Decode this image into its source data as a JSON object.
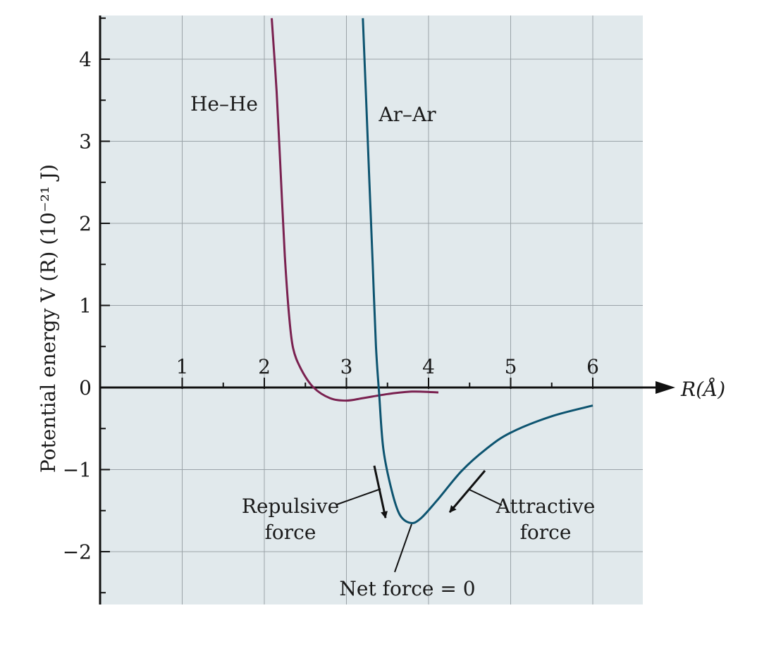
{
  "chart_data": {
    "type": "line",
    "xlabel": "R(Å)",
    "ylabel": "Potential energy V (R) (10⁻²¹ J)",
    "xlim": [
      0,
      6.6
    ],
    "ylim": [
      -2.6,
      4.5
    ],
    "x_ticks": [
      "1",
      "2",
      "3",
      "4",
      "5",
      "6"
    ],
    "y_ticks": [
      "4",
      "3",
      "2",
      "1",
      "0",
      "−1",
      "−2"
    ],
    "grid": true,
    "background": "#e1e9ec",
    "series": [
      {
        "name": "He–He",
        "color": "#7a2150",
        "points": [
          [
            2.09,
            4.5
          ],
          [
            2.15,
            3.6
          ],
          [
            2.2,
            2.6
          ],
          [
            2.25,
            1.6
          ],
          [
            2.3,
            0.9
          ],
          [
            2.35,
            0.48
          ],
          [
            2.45,
            0.22
          ],
          [
            2.6,
            0.0
          ],
          [
            2.8,
            -0.13
          ],
          [
            3.0,
            -0.16
          ],
          [
            3.2,
            -0.13
          ],
          [
            3.5,
            -0.08
          ],
          [
            3.8,
            -0.05
          ],
          [
            4.12,
            -0.06
          ]
        ]
      },
      {
        "name": "Ar–Ar",
        "color": "#0d5470",
        "points": [
          [
            3.2,
            4.5
          ],
          [
            3.24,
            3.5
          ],
          [
            3.28,
            2.5
          ],
          [
            3.32,
            1.5
          ],
          [
            3.36,
            0.5
          ],
          [
            3.4,
            -0.1
          ],
          [
            3.45,
            -0.75
          ],
          [
            3.55,
            -1.25
          ],
          [
            3.65,
            -1.55
          ],
          [
            3.78,
            -1.65
          ],
          [
            3.9,
            -1.6
          ],
          [
            4.1,
            -1.38
          ],
          [
            4.4,
            -1.02
          ],
          [
            4.7,
            -0.75
          ],
          [
            5.0,
            -0.55
          ],
          [
            5.5,
            -0.35
          ],
          [
            6.0,
            -0.22
          ]
        ]
      }
    ],
    "annotations": {
      "repulsive": [
        "Repulsive",
        "force"
      ],
      "attractive": [
        "Attractive",
        "force"
      ],
      "net": "Net force = 0"
    }
  }
}
